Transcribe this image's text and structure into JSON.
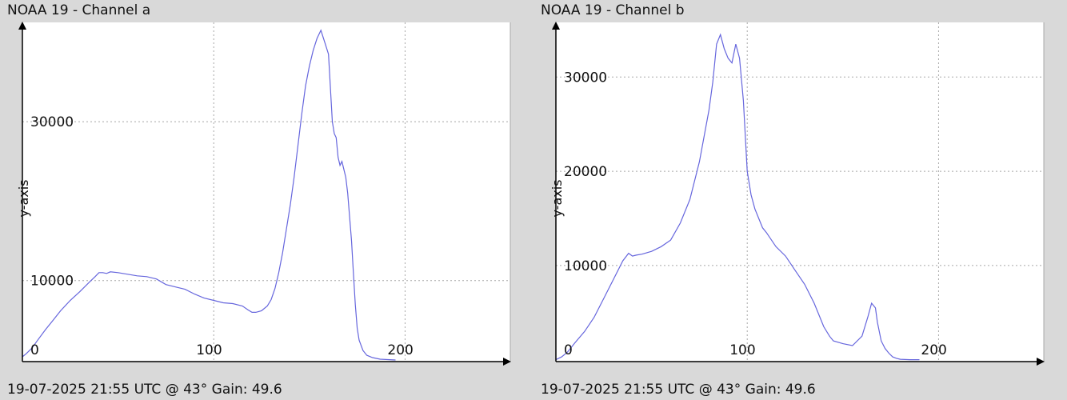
{
  "colors": {
    "background": "#d9d9d9",
    "plot_area": "#ffffff",
    "grid": "#a8a8a8",
    "series": "#6666dd",
    "axis": "#000000"
  },
  "chart_data": [
    {
      "type": "line",
      "title": "NOAA 19 - Channel a",
      "footer": "19-07-2025 21:55 UTC @ 43° Gain: 49.6",
      "ylabel": "y-axis",
      "xlabel": "",
      "xlim": [
        0,
        255
      ],
      "ylim": [
        -200,
        42500
      ],
      "grid": true,
      "x_ticks": [
        {
          "value": 0,
          "label": "0"
        },
        {
          "value": 100,
          "label": "100"
        },
        {
          "value": 200,
          "label": "200"
        }
      ],
      "y_ticks": [
        {
          "value": 10000,
          "label": "10000"
        },
        {
          "value": 30000,
          "label": "30000"
        }
      ],
      "series": [
        {
          "x": [
            0,
            2,
            5,
            8,
            12,
            16,
            20,
            25,
            30,
            35,
            38,
            40,
            42,
            44,
            46,
            50,
            55,
            60,
            65,
            70,
            75,
            80,
            85,
            90,
            95,
            100,
            105,
            110,
            115,
            118,
            120,
            122,
            125,
            128,
            130,
            132,
            134,
            136,
            138,
            140,
            142,
            144,
            146,
            148,
            150,
            152,
            154,
            156,
            158,
            160,
            162,
            163,
            164,
            165,
            166,
            167,
            168,
            169,
            170,
            171,
            172,
            173,
            174,
            175,
            176,
            178,
            180,
            183,
            187,
            191,
            195
          ],
          "y": [
            400,
            800,
            1500,
            2500,
            3800,
            5000,
            6200,
            7500,
            8600,
            9800,
            10500,
            11000,
            11000,
            10900,
            11100,
            11000,
            10800,
            10600,
            10500,
            10200,
            9500,
            9200,
            8900,
            8300,
            7800,
            7500,
            7200,
            7100,
            6800,
            6300,
            6000,
            6000,
            6200,
            6800,
            7600,
            9000,
            11000,
            13500,
            16500,
            19500,
            23000,
            27000,
            31000,
            34500,
            37000,
            39000,
            40500,
            41500,
            40000,
            38500,
            30000,
            28500,
            28000,
            25500,
            24500,
            25000,
            24000,
            23000,
            21000,
            18000,
            15000,
            11000,
            7000,
            4000,
            2500,
            1200,
            600,
            300,
            100,
            50,
            0
          ]
        }
      ]
    },
    {
      "type": "line",
      "title": "NOAA 19 - Channel b",
      "footer": "19-07-2025 21:55 UTC @ 43° Gain: 49.6",
      "ylabel": "y-axis",
      "xlabel": "",
      "xlim": [
        0,
        255
      ],
      "ylim": [
        -200,
        35800
      ],
      "grid": true,
      "x_ticks": [
        {
          "value": 0,
          "label": "0"
        },
        {
          "value": 100,
          "label": "100"
        },
        {
          "value": 200,
          "label": "200"
        }
      ],
      "y_ticks": [
        {
          "value": 10000,
          "label": "10000"
        },
        {
          "value": 20000,
          "label": "20000"
        },
        {
          "value": 30000,
          "label": "30000"
        }
      ],
      "series": [
        {
          "x": [
            0,
            3,
            6,
            10,
            15,
            20,
            25,
            30,
            35,
            38,
            40,
            42,
            45,
            50,
            55,
            60,
            65,
            70,
            75,
            80,
            82,
            84,
            86,
            88,
            90,
            92,
            94,
            96,
            98,
            100,
            102,
            104,
            106,
            108,
            110,
            115,
            120,
            125,
            130,
            135,
            140,
            143,
            145,
            150,
            155,
            160,
            163,
            165,
            167,
            168,
            170,
            172,
            174,
            176,
            178,
            180,
            185,
            190
          ],
          "y": [
            0,
            300,
            800,
            1800,
            3000,
            4500,
            6500,
            8500,
            10500,
            11300,
            11000,
            11100,
            11200,
            11500,
            12000,
            12700,
            14500,
            17000,
            21000,
            26500,
            29500,
            33500,
            34500,
            33000,
            32000,
            31500,
            33500,
            32000,
            27500,
            20000,
            17500,
            16000,
            15000,
            14000,
            13500,
            12000,
            11000,
            9500,
            8000,
            6000,
            3500,
            2500,
            2000,
            1700,
            1500,
            2500,
            4500,
            6000,
            5500,
            4000,
            2000,
            1200,
            700,
            300,
            150,
            50,
            0,
            0
          ]
        }
      ]
    }
  ]
}
